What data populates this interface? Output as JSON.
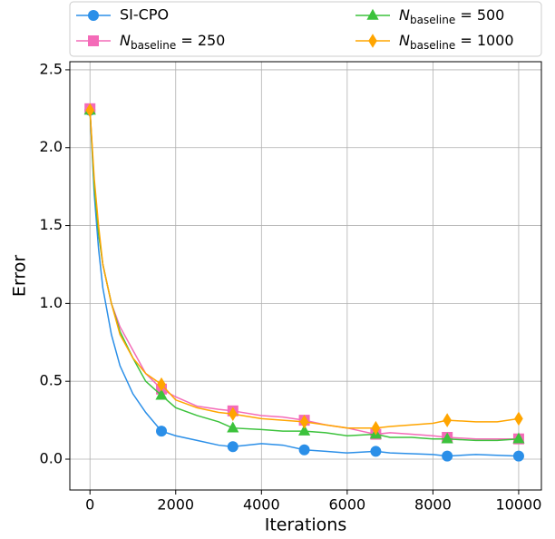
{
  "chart_data": {
    "type": "line",
    "x_label": "Iterations",
    "y_label": "Error",
    "x": [
      0,
      100,
      200,
      300,
      500,
      700,
      1000,
      1300,
      1667,
      2000,
      2500,
      3000,
      3333,
      4000,
      4500,
      5000,
      5500,
      6000,
      6667,
      7000,
      7500,
      8000,
      8333,
      9000,
      9500,
      10000
    ],
    "markevery": [
      0,
      8,
      12,
      15,
      18,
      22,
      25
    ],
    "series": [
      {
        "name": "SI-CPO",
        "color": "#2b8fe8",
        "marker": "circle",
        "values": [
          2.24,
          1.7,
          1.35,
          1.1,
          0.8,
          0.6,
          0.42,
          0.3,
          0.18,
          0.15,
          0.12,
          0.09,
          0.08,
          0.1,
          0.09,
          0.06,
          0.05,
          0.04,
          0.05,
          0.04,
          0.035,
          0.03,
          0.02,
          0.03,
          0.025,
          0.02
        ]
      },
      {
        "name": "Nbaseline = 250",
        "color": "#f46bb8",
        "marker": "square",
        "values": [
          2.25,
          1.75,
          1.45,
          1.25,
          1.0,
          0.85,
          0.7,
          0.55,
          0.45,
          0.4,
          0.34,
          0.32,
          0.31,
          0.28,
          0.27,
          0.25,
          0.22,
          0.2,
          0.16,
          0.17,
          0.16,
          0.15,
          0.14,
          0.13,
          0.13,
          0.13
        ]
      },
      {
        "name": "Nbaseline = 500",
        "color": "#3cc23c",
        "marker": "triangle",
        "values": [
          2.24,
          1.75,
          1.45,
          1.25,
          1.0,
          0.82,
          0.65,
          0.5,
          0.41,
          0.33,
          0.28,
          0.24,
          0.2,
          0.19,
          0.18,
          0.18,
          0.17,
          0.15,
          0.16,
          0.14,
          0.14,
          0.13,
          0.13,
          0.12,
          0.12,
          0.13
        ]
      },
      {
        "name": "Nbaseline = 1000",
        "color": "#ffa500",
        "marker": "diamond",
        "values": [
          2.24,
          1.8,
          1.5,
          1.25,
          1.0,
          0.8,
          0.65,
          0.55,
          0.48,
          0.38,
          0.33,
          0.3,
          0.29,
          0.26,
          0.25,
          0.24,
          0.22,
          0.2,
          0.2,
          0.21,
          0.22,
          0.23,
          0.25,
          0.24,
          0.24,
          0.26
        ]
      }
    ],
    "xlim": [
      -470,
      10530
    ],
    "ylim": [
      -0.198,
      2.552
    ],
    "xticks": [
      0,
      2000,
      4000,
      6000,
      8000,
      10000
    ],
    "yticks": [
      {
        "value": 0,
        "label": "0.0"
      },
      0.5,
      {
        "value": 1,
        "label": "1.0"
      },
      1.5,
      {
        "value": 2,
        "label": "2.0"
      },
      2.5
    ],
    "grid": true,
    "legend": "top"
  }
}
